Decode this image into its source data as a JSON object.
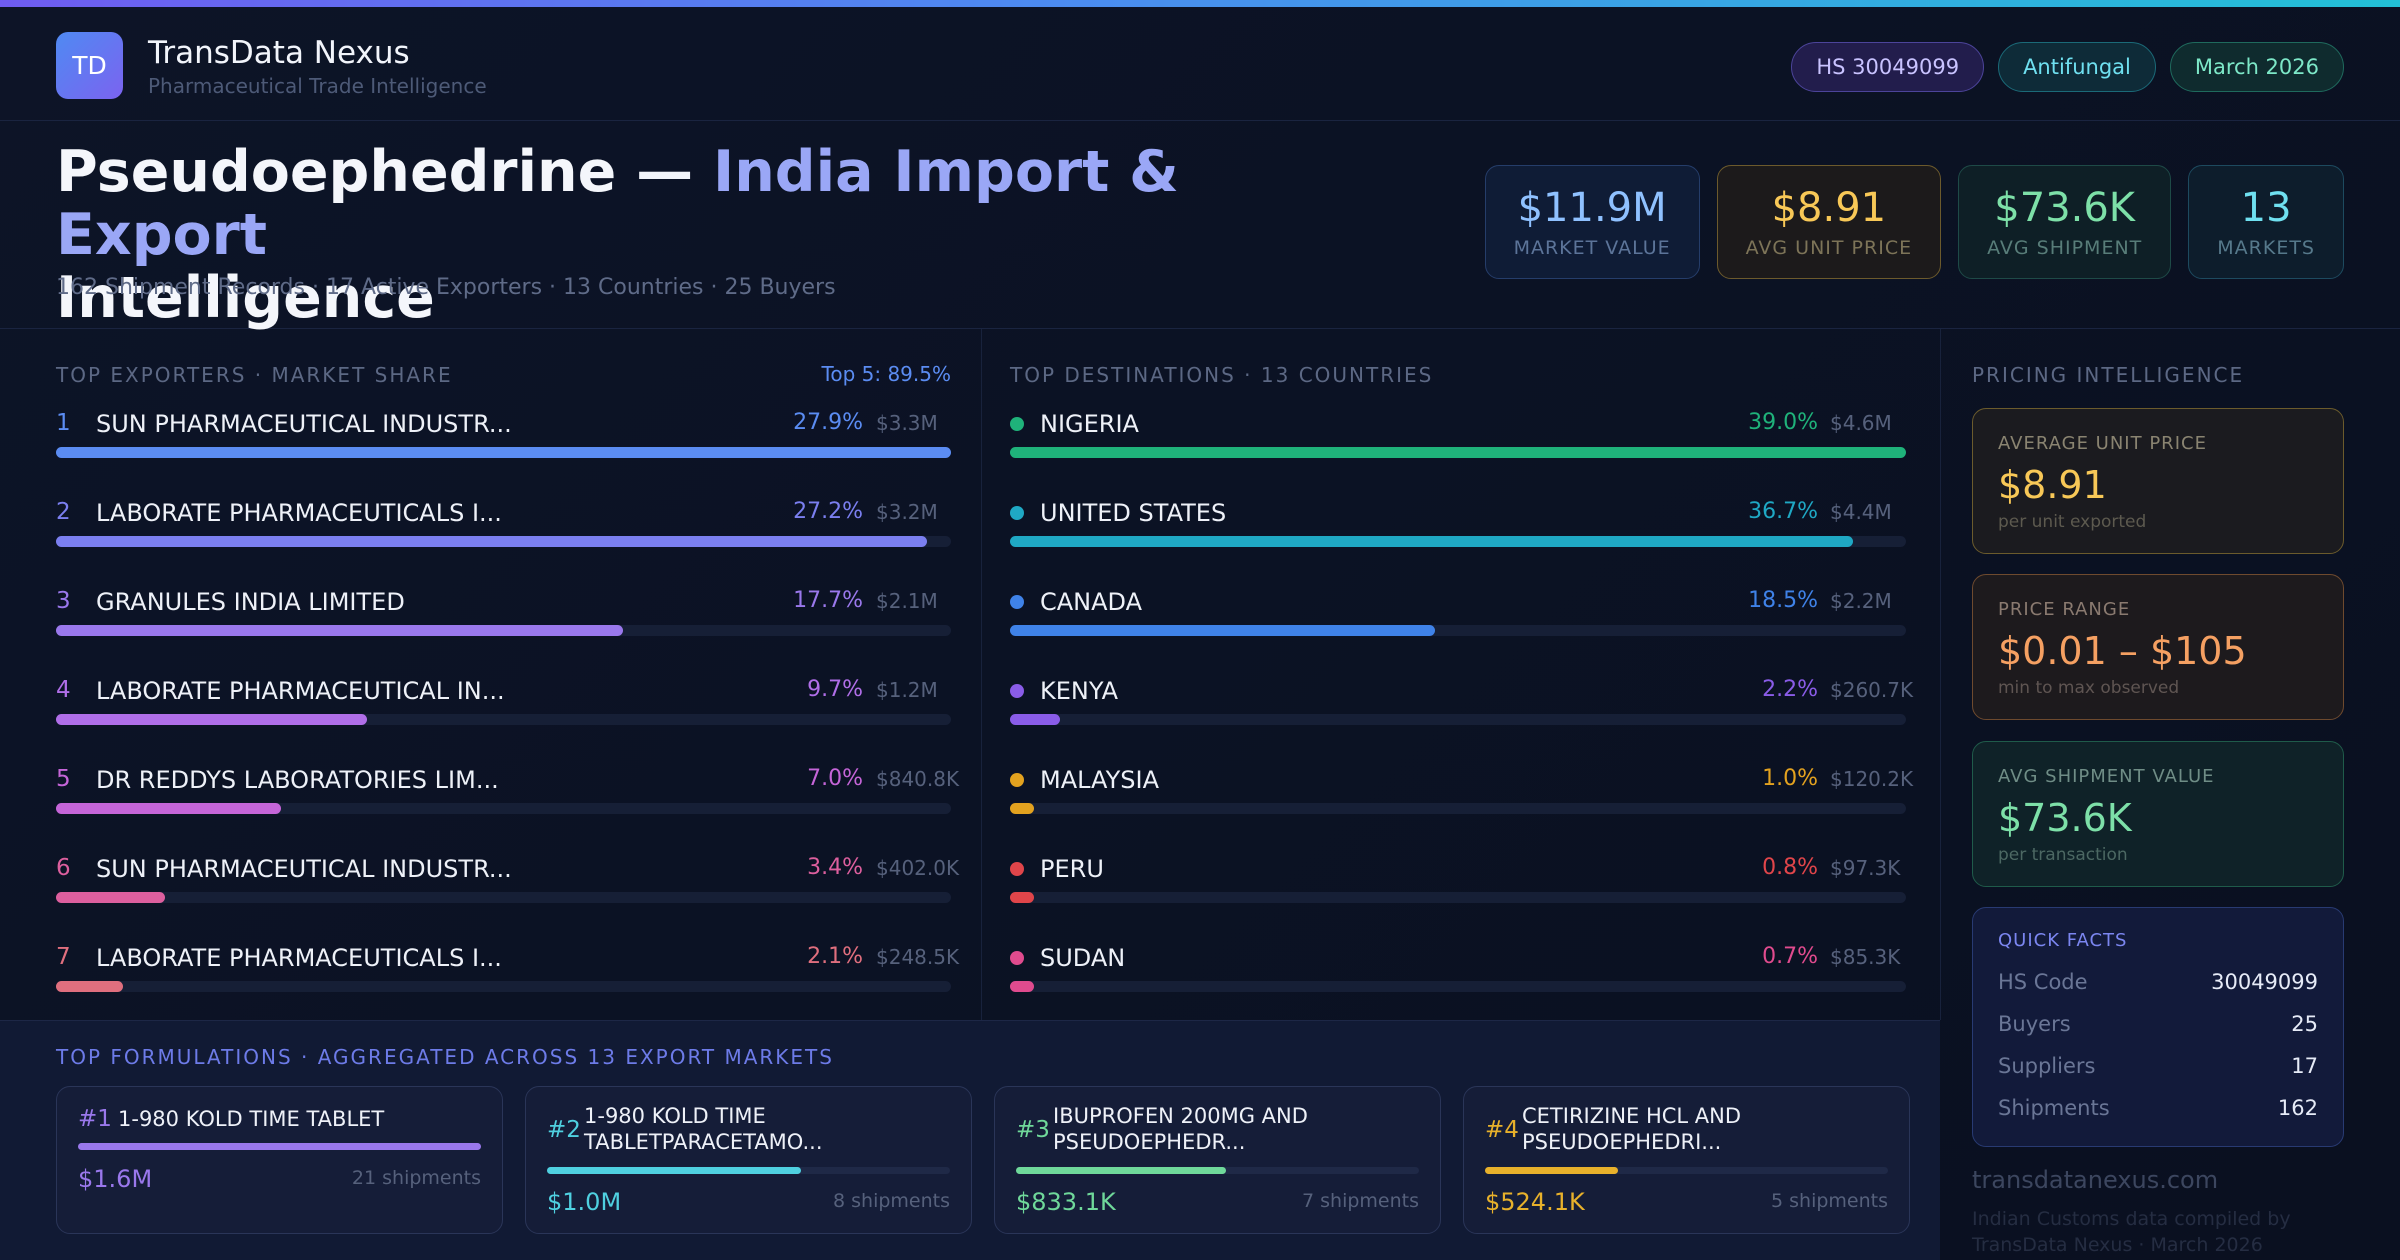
{
  "brand": {
    "logo": "TD",
    "name": "TransData Nexus",
    "tagline": "Pharmaceutical Trade Intelligence"
  },
  "pills": {
    "hs": "HS 30049099",
    "category": "Antifungal",
    "date": "March 2026"
  },
  "title": {
    "lead": "Pseudoephedrine — ",
    "accent": "India Import & Export",
    "tail": "Intelligence",
    "subtitle": "162 Shipment Records · 17 Active Exporters · 13 Countries · 25 Buyers"
  },
  "stats": [
    {
      "value": "$11.9M",
      "label": "MARKET VALUE"
    },
    {
      "value": "$8.91",
      "label": "AVG UNIT PRICE"
    },
    {
      "value": "$73.6K",
      "label": "AVG SHIPMENT"
    },
    {
      "value": "13",
      "label": "MARKETS"
    }
  ],
  "exporters": {
    "title": "TOP EXPORTERS · MARKET SHARE",
    "top5": "Top 5: 89.5%",
    "rows": [
      {
        "rank": "1",
        "name": "SUN PHARMACEUTICAL INDUSTR...",
        "pct": "27.9%",
        "value": "$3.3M",
        "fill": 1.0,
        "color": "#5b8cf2"
      },
      {
        "rank": "2",
        "name": "LABORATE PHARMACEUTICALS I...",
        "pct": "27.2%",
        "value": "$3.2M",
        "fill": 0.973,
        "color": "#7b7ff0"
      },
      {
        "rank": "3",
        "name": "GRANULES INDIA LIMITED",
        "pct": "17.7%",
        "value": "$2.1M",
        "fill": 0.634,
        "color": "#9a78ec"
      },
      {
        "rank": "4",
        "name": "LABORATE PHARMACEUTICAL IN...",
        "pct": "9.7%",
        "value": "$1.2M",
        "fill": 0.348,
        "color": "#b06ee8"
      },
      {
        "rank": "5",
        "name": "DR REDDYS LABORATORIES LIM...",
        "pct": "7.0%",
        "value": "$840.8K",
        "fill": 0.251,
        "color": "#c565d8"
      },
      {
        "rank": "6",
        "name": "SUN PHARMACEUTICAL INDUSTR...",
        "pct": "3.4%",
        "value": "$402.0K",
        "fill": 0.122,
        "color": "#dd5f9e"
      },
      {
        "rank": "7",
        "name": "LABORATE PHARMACEUTICALS I...",
        "pct": "2.1%",
        "value": "$248.5K",
        "fill": 0.075,
        "color": "#e06f7e"
      }
    ]
  },
  "destinations": {
    "title": "TOP DESTINATIONS · 13 COUNTRIES",
    "rows": [
      {
        "name": "NIGERIA",
        "pct": "39.0%",
        "value": "$4.6M",
        "fill": 1.0,
        "color": "#1fb27a"
      },
      {
        "name": "UNITED STATES",
        "pct": "36.7%",
        "value": "$4.4M",
        "fill": 0.941,
        "color": "#1fa8c4"
      },
      {
        "name": "CANADA",
        "pct": "18.5%",
        "value": "$2.2M",
        "fill": 0.474,
        "color": "#3f82e8"
      },
      {
        "name": "KENYA",
        "pct": "2.2%",
        "value": "$260.7K",
        "fill": 0.056,
        "color": "#8a5ce8"
      },
      {
        "name": "MALAYSIA",
        "pct": "1.0%",
        "value": "$120.2K",
        "fill": 0.026,
        "color": "#e3a21f"
      },
      {
        "name": "PERU",
        "pct": "0.8%",
        "value": "$97.3K",
        "fill": 0.021,
        "color": "#e0454a"
      },
      {
        "name": "SUDAN",
        "pct": "0.7%",
        "value": "$85.3K",
        "fill": 0.018,
        "color": "#e04b8e"
      }
    ]
  },
  "pricing": {
    "title": "PRICING INTELLIGENCE",
    "avg": {
      "label": "AVERAGE UNIT PRICE",
      "value": "$8.91",
      "note": "per unit exported"
    },
    "range": {
      "label": "PRICE RANGE",
      "value": "$0.01 – $105",
      "note": "min to max observed"
    },
    "shipment": {
      "label": "AVG SHIPMENT VALUE",
      "value": "$73.6K",
      "note": "per transaction"
    }
  },
  "facts": {
    "title": "QUICK FACTS",
    "rows": [
      {
        "key": "HS Code",
        "value": "30049099"
      },
      {
        "key": "Buyers",
        "value": "25"
      },
      {
        "key": "Suppliers",
        "value": "17"
      },
      {
        "key": "Shipments",
        "value": "162"
      }
    ]
  },
  "footer": {
    "site": "transdatanexus.com",
    "note": "Indian Customs data compiled by TransData Nexus · March 2026"
  },
  "formulations": {
    "title": "TOP FORMULATIONS · AGGREGATED ACROSS 13 EXPORT MARKETS",
    "items": [
      {
        "rank": "#1",
        "name_line1": "1-980 KOLD TIME TABLET",
        "name_line2": "",
        "value": "$1.6M",
        "shipments": "21 shipments",
        "fill": 1.0,
        "color": "#9a78ec"
      },
      {
        "rank": "#2",
        "name_line1": "1-980 KOLD TIME",
        "name_line2": "TABLETPARACETAMO...",
        "value": "$1.0M",
        "shipments": "8 shipments",
        "fill": 0.63,
        "color": "#4fd0e0"
      },
      {
        "rank": "#3",
        "name_line1": "IBUPROFEN 200MG AND",
        "name_line2": "PSEUDOEPHEDR...",
        "value": "$833.1K",
        "shipments": "7 shipments",
        "fill": 0.52,
        "color": "#6fd89a"
      },
      {
        "rank": "#4",
        "name_line1": "CETIRIZINE HCL AND",
        "name_line2": "PSEUDOEPHEDRI...",
        "value": "$524.1K",
        "shipments": "5 shipments",
        "fill": 0.33,
        "color": "#e8b12b"
      }
    ]
  }
}
